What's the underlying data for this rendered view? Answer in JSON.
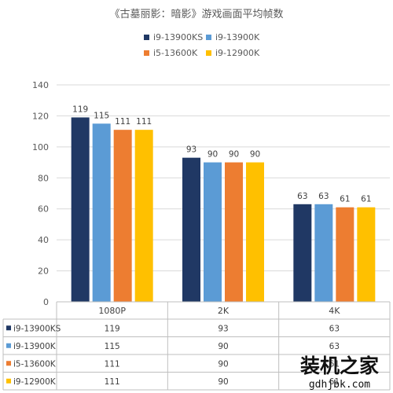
{
  "chart_data": {
    "type": "bar",
    "title": "《古墓丽影：暗影》游戏画面平均帧数",
    "categories": [
      "1080P",
      "2K",
      "4K"
    ],
    "series": [
      {
        "name": "i9-13900KS",
        "values": [
          119,
          93,
          63
        ],
        "color": "#203864"
      },
      {
        "name": "i9-13900K",
        "values": [
          115,
          90,
          63
        ],
        "color": "#5b9bd5"
      },
      {
        "name": "i5-13600K",
        "values": [
          111,
          90,
          61
        ],
        "color": "#ed7d31"
      },
      {
        "name": "i9-12900K",
        "values": [
          111,
          90,
          61
        ],
        "color": "#ffc000"
      }
    ],
    "ylim": [
      0,
      140
    ],
    "yticks": [
      0,
      20,
      40,
      60,
      80,
      100,
      120,
      140
    ],
    "grid": true,
    "legend_position": "top",
    "data_table": true,
    "data_labels": true
  },
  "watermark": {
    "text": "装机之家",
    "url": "gdhjbk.com"
  }
}
